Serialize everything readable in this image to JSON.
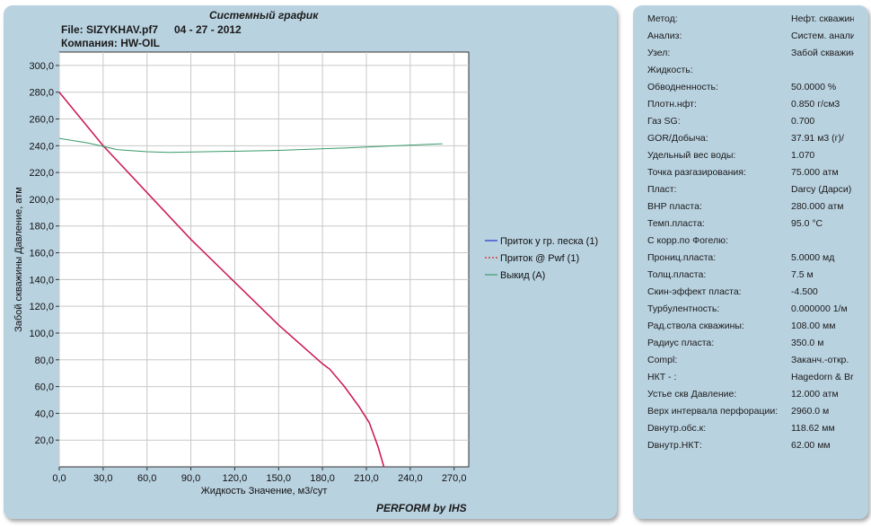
{
  "header": {
    "title": "Системный график",
    "file_label": "File: SIZYKHAV.pf7",
    "date": "04 - 27 - 2012",
    "company": "Компания: HW-OIL",
    "footer": "PERFORM by IHS"
  },
  "chart_data": {
    "type": "line",
    "xlabel": "Жидкость Значение, м3/сут",
    "ylabel": "Забой скважины Давление, атм",
    "xlim": [
      0,
      280
    ],
    "ylim": [
      0,
      310
    ],
    "x_ticks": [
      "0,0",
      "30,0",
      "60,0",
      "90,0",
      "120,0",
      "150,0",
      "180,0",
      "210,0",
      "240,0",
      "270,0"
    ],
    "y_ticks": [
      "20,0",
      "40,0",
      "60,0",
      "80,0",
      "100,0",
      "120,0",
      "140,0",
      "160,0",
      "180,0",
      "200,0",
      "220,0",
      "240,0",
      "260,0",
      "280,0",
      "300,0"
    ],
    "grid": true,
    "legend_position": "right",
    "series": [
      {
        "name": "Приток у гр. песка (1)",
        "color": "#2233cc",
        "style": "solid",
        "x": [
          0,
          30,
          60,
          90,
          120,
          150,
          180,
          185,
          195,
          205,
          212,
          218,
          222
        ],
        "y": [
          280,
          240,
          205,
          170,
          138,
          106,
          77,
          73,
          60,
          45,
          33,
          15,
          0
        ]
      },
      {
        "name": "Приток @ Pwf (1)",
        "color": "#dd2222",
        "style": "dashed",
        "x": [
          0,
          30,
          60,
          90,
          120,
          150,
          180,
          185,
          195,
          205,
          212,
          218,
          222
        ],
        "y": [
          280,
          240,
          205,
          170,
          138,
          106,
          77,
          73,
          60,
          45,
          33,
          15,
          0
        ]
      },
      {
        "name": "Выкид (А)",
        "color": "#3a9a6a",
        "style": "solid",
        "x": [
          0,
          20,
          40,
          60,
          75,
          100,
          150,
          200,
          240,
          262
        ],
        "y": [
          245.5,
          242,
          237,
          235.5,
          235,
          235.5,
          236.5,
          238.5,
          240.5,
          241.5
        ]
      }
    ],
    "overlap_color": "#cc1a5a"
  },
  "properties": [
    {
      "label": "Метод:",
      "value": "Нефт. скважина"
    },
    {
      "label": "Анализ:",
      "value": "Систем. анализ"
    },
    {
      "label": "Узел:",
      "value": "Забой скважины"
    },
    {
      "label": "Жидкость:",
      "value": ""
    },
    {
      "label": "Обводненность:",
      "value": "50.0000 %"
    },
    {
      "label": "Плотн.нфт:",
      "value": "0.850 г/см3"
    },
    {
      "label": "Газ SG:",
      "value": "0.700"
    },
    {
      "label": "GOR/Добыча:",
      "value": "37.91 м3 (г)/"
    },
    {
      "label": "Удельный вес воды:",
      "value": "1.070"
    },
    {
      "label": "Точка разгазирования:",
      "value": "75.000 атм"
    },
    {
      "label": "Пласт:",
      "value": "Darcy (Дарси)"
    },
    {
      "label": "ВНР пласта:",
      "value": "280.000 атм"
    },
    {
      "label": "Темп.пласта:",
      "value": "95.0 °C"
    },
    {
      "label": "С корр.по Фогелю:",
      "value": ""
    },
    {
      "label": "Прониц.пласта:",
      "value": "5.0000 мд"
    },
    {
      "label": "Толщ.пласта:",
      "value": "7.5 м"
    },
    {
      "label": "Скин-эффект пласта:",
      "value": "-4.500"
    },
    {
      "label": "Турбулентность:",
      "value": "0.000000 1/м"
    },
    {
      "label": "Рад.ствола скважины:",
      "value": "108.00 мм"
    },
    {
      "label": "Радиус пласта:",
      "value": "350.0 м"
    },
    {
      "label": "Compl:",
      "value": "Заканч.-откр."
    },
    {
      "label": "НКТ - :",
      "value": "Hagedorn & Br"
    },
    {
      "label": "Устье скв Давление:",
      "value": "12.000 атм"
    },
    {
      "label": "Верх интервала перфорации:",
      "value": "2960.0 м"
    },
    {
      "label": "Dвнутр.обс.к:",
      "value": "118.62 мм"
    },
    {
      "label": "Dвнутр.НКТ:",
      "value": "62.00 мм"
    }
  ]
}
